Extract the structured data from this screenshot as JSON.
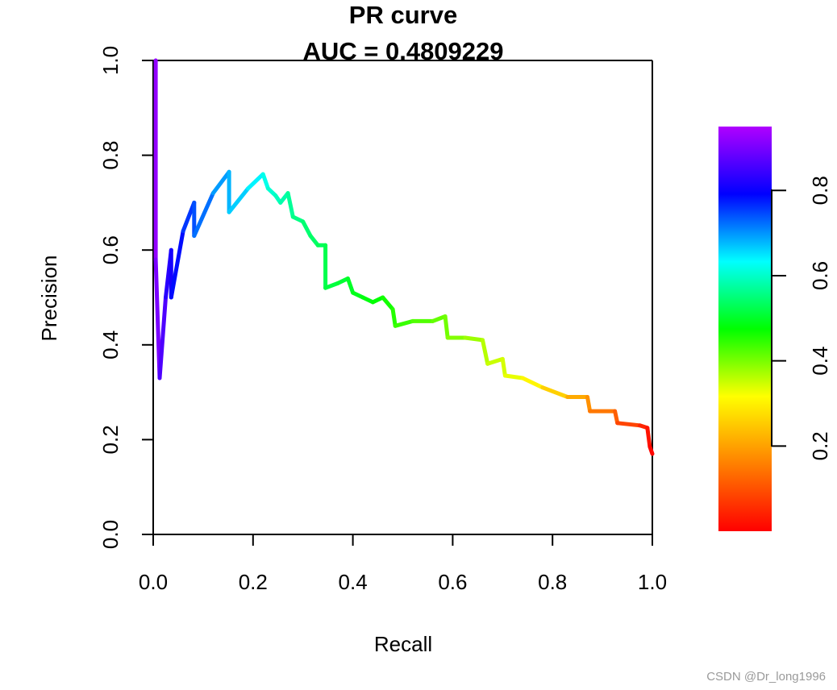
{
  "chart_data": {
    "type": "line",
    "title": "PR curve",
    "subtitle": "AUC = 0.4809229",
    "xlabel": "Recall",
    "ylabel": "Precision",
    "xlim": [
      0,
      1
    ],
    "ylim": [
      0,
      1
    ],
    "x_ticks": [
      "0.0",
      "0.2",
      "0.4",
      "0.6",
      "0.8",
      "1.0"
    ],
    "y_ticks": [
      "0.0",
      "0.2",
      "0.4",
      "0.6",
      "0.8",
      "1.0"
    ],
    "color_mapped_by": "threshold",
    "legend": {
      "type": "colorbar",
      "placement": "right",
      "range": [
        0,
        0.95
      ],
      "tick_labels": [
        "0.2",
        "0.4",
        "0.6",
        "0.8"
      ],
      "tick_values": [
        0.2,
        0.4,
        0.6,
        0.8
      ],
      "colors": [
        "#ff0000",
        "#ff8000",
        "#ffff00",
        "#00ff00",
        "#00ffff",
        "#0000ff",
        "#b000ff"
      ]
    },
    "series": [
      {
        "points": [
          [
            0.005,
            1.0,
            0.93
          ],
          [
            0.005,
            0.58,
            0.92
          ],
          [
            0.013,
            0.33,
            0.89
          ],
          [
            0.025,
            0.5,
            0.85
          ],
          [
            0.036,
            0.6,
            0.83
          ],
          [
            0.036,
            0.5,
            0.82
          ],
          [
            0.06,
            0.64,
            0.78
          ],
          [
            0.082,
            0.7,
            0.75
          ],
          [
            0.082,
            0.63,
            0.74
          ],
          [
            0.12,
            0.72,
            0.7
          ],
          [
            0.152,
            0.765,
            0.67
          ],
          [
            0.152,
            0.68,
            0.66
          ],
          [
            0.19,
            0.73,
            0.63
          ],
          [
            0.22,
            0.76,
            0.6
          ],
          [
            0.23,
            0.73,
            0.58
          ],
          [
            0.245,
            0.715,
            0.56
          ],
          [
            0.255,
            0.7,
            0.55
          ],
          [
            0.27,
            0.72,
            0.53
          ],
          [
            0.28,
            0.67,
            0.52
          ],
          [
            0.3,
            0.66,
            0.5
          ],
          [
            0.315,
            0.63,
            0.49
          ],
          [
            0.33,
            0.61,
            0.48
          ],
          [
            0.345,
            0.61,
            0.47
          ],
          [
            0.345,
            0.52,
            0.46
          ],
          [
            0.37,
            0.53,
            0.45
          ],
          [
            0.39,
            0.54,
            0.44
          ],
          [
            0.4,
            0.51,
            0.43
          ],
          [
            0.42,
            0.5,
            0.42
          ],
          [
            0.44,
            0.49,
            0.41
          ],
          [
            0.46,
            0.5,
            0.4
          ],
          [
            0.48,
            0.475,
            0.38
          ],
          [
            0.485,
            0.44,
            0.37
          ],
          [
            0.52,
            0.45,
            0.35
          ],
          [
            0.56,
            0.45,
            0.33
          ],
          [
            0.585,
            0.46,
            0.32
          ],
          [
            0.59,
            0.415,
            0.31
          ],
          [
            0.625,
            0.415,
            0.29
          ],
          [
            0.66,
            0.41,
            0.27
          ],
          [
            0.67,
            0.36,
            0.25
          ],
          [
            0.7,
            0.37,
            0.24
          ],
          [
            0.705,
            0.335,
            0.23
          ],
          [
            0.74,
            0.33,
            0.21
          ],
          [
            0.78,
            0.31,
            0.18
          ],
          [
            0.83,
            0.29,
            0.15
          ],
          [
            0.87,
            0.29,
            0.12
          ],
          [
            0.875,
            0.26,
            0.11
          ],
          [
            0.925,
            0.26,
            0.08
          ],
          [
            0.93,
            0.235,
            0.07
          ],
          [
            0.975,
            0.23,
            0.04
          ],
          [
            0.99,
            0.225,
            0.02
          ],
          [
            0.995,
            0.185,
            0.01
          ],
          [
            1.0,
            0.17,
            0.0
          ]
        ]
      }
    ]
  },
  "watermark": "CSDN @Dr_long1996"
}
